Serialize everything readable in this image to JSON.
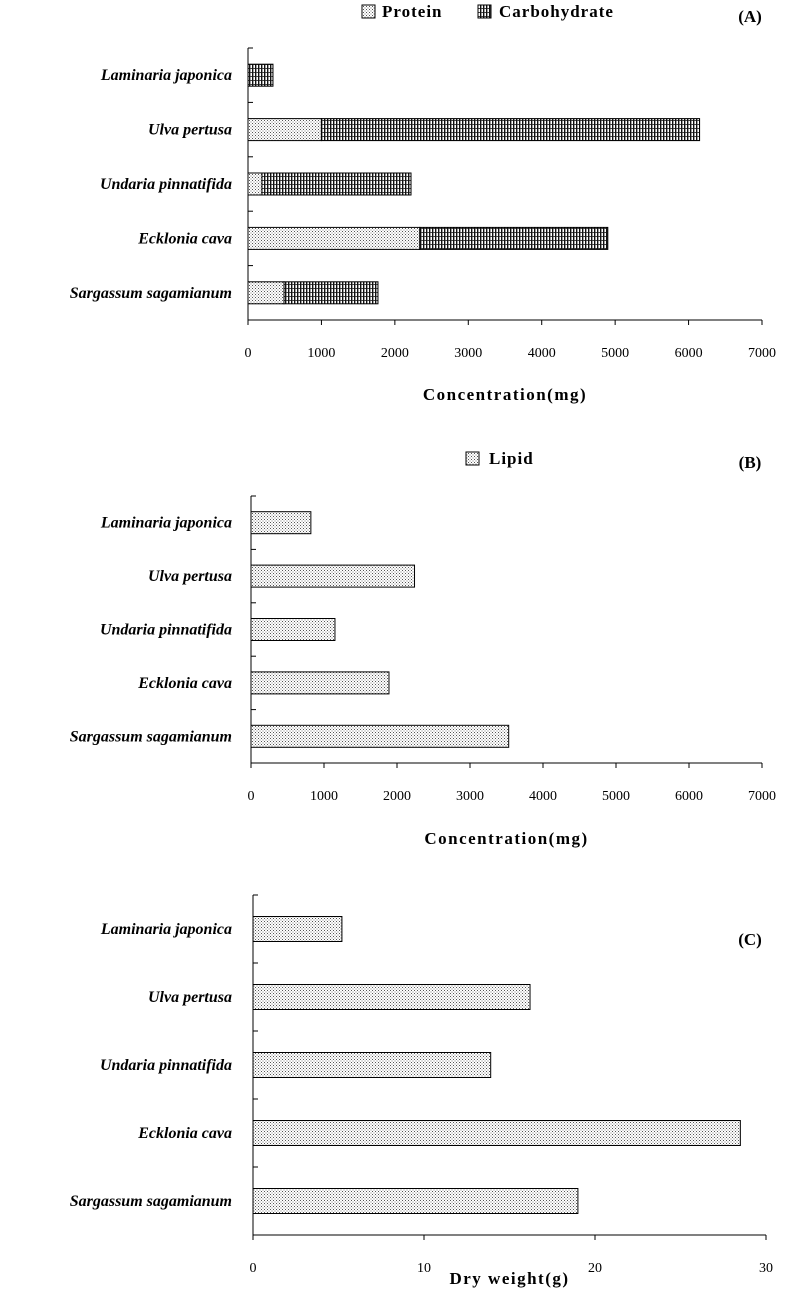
{
  "colors": {
    "bar_stroke": "#000000",
    "axis": "#000000",
    "background": "#ffffff"
  },
  "chart_data": [
    {
      "type": "bar",
      "orientation": "horizontal",
      "stacked": true,
      "panel_label": "(A)",
      "categories": [
        "Laminaria japonica",
        "Ulva pertusa",
        "Undaria pinnatifida",
        "Ecklonia cava",
        "Sargassum sagamianum"
      ],
      "series": [
        {
          "name": "Protein",
          "pattern": "dots",
          "values": [
            0,
            1000,
            190,
            2340,
            490
          ]
        },
        {
          "name": "Carbohydrate",
          "pattern": "vertical-lines",
          "values": [
            340,
            5150,
            2030,
            2560,
            1280
          ]
        }
      ],
      "xlabel": "Concentration(mg)",
      "xlim": [
        0,
        7000
      ],
      "xticks": [
        0,
        1000,
        2000,
        3000,
        4000,
        5000,
        6000,
        7000
      ],
      "legend_position": "top-right",
      "grid": false
    },
    {
      "type": "bar",
      "orientation": "horizontal",
      "stacked": false,
      "panel_label": "(B)",
      "categories": [
        "Laminaria japonica",
        "Ulva pertusa",
        "Undaria pinnatifida",
        "Ecklonia cava",
        "Sargassum sagamianum"
      ],
      "series": [
        {
          "name": "Lipid",
          "pattern": "dots",
          "values": [
            820,
            2240,
            1150,
            1890,
            3530
          ]
        }
      ],
      "xlabel": "Concentration(mg)",
      "xlim": [
        0,
        7000
      ],
      "xticks": [
        0,
        1000,
        2000,
        3000,
        4000,
        5000,
        6000,
        7000
      ],
      "legend_position": "top-right",
      "grid": false
    },
    {
      "type": "bar",
      "orientation": "horizontal",
      "stacked": false,
      "panel_label": "(C)",
      "categories": [
        "Laminaria japonica",
        "Ulva pertusa",
        "Undaria pinnatifida",
        "Ecklonia cava",
        "Sargassum sagamianum"
      ],
      "series": [
        {
          "pattern": "dots",
          "values": [
            5.2,
            16.2,
            13.9,
            28.5,
            19.0
          ]
        }
      ],
      "xlabel": "Dry weight(g)",
      "xlim": [
        0,
        30
      ],
      "xticks": [
        0,
        10,
        20,
        30
      ],
      "grid": false
    }
  ]
}
